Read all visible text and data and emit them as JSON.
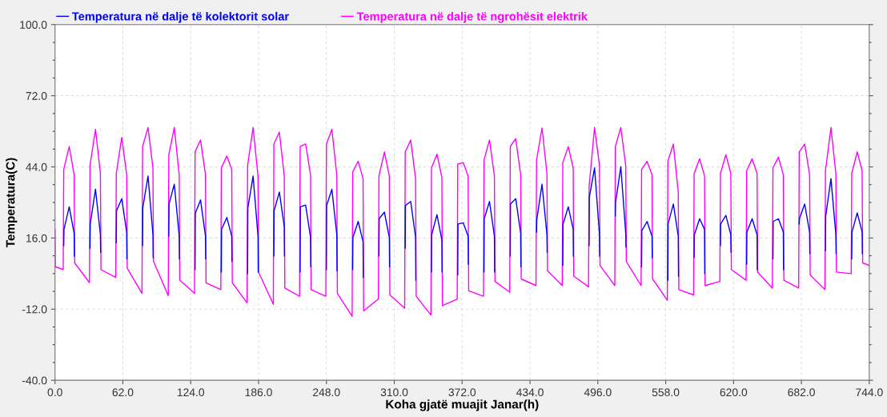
{
  "chart_data": {
    "type": "line",
    "xlabel": "Koha gjatë muajit Janar(h)",
    "ylabel": "Temperatura(C)",
    "xlim": [
      0,
      744
    ],
    "xticks": [
      {
        "value": 0,
        "label": "0.0"
      },
      {
        "value": 62,
        "label": "62.0"
      },
      {
        "value": 124,
        "label": "124.0"
      },
      {
        "value": 186,
        "label": "186.0"
      },
      {
        "value": 248,
        "label": "248.0"
      },
      {
        "value": 310,
        "label": "310.0"
      },
      {
        "value": 372,
        "label": "372.0"
      },
      {
        "value": 434,
        "label": "434.0"
      },
      {
        "value": 496,
        "label": "496.0"
      },
      {
        "value": 558,
        "label": "558.0"
      },
      {
        "value": 620,
        "label": "620.0"
      },
      {
        "value": 682,
        "label": "682.0"
      },
      {
        "value": 744,
        "label": "744.0"
      }
    ],
    "ylim": [
      -40,
      100
    ],
    "yticks": [
      {
        "value": -40,
        "label": "-40.0"
      },
      {
        "value": -12,
        "label": "-12.0"
      },
      {
        "value": 16,
        "label": "16.0"
      },
      {
        "value": 44,
        "label": "44.0"
      },
      {
        "value": 72,
        "label": "72.0"
      },
      {
        "value": 100,
        "label": "100.0"
      }
    ],
    "grid": true,
    "legend": "top",
    "line_style": "solid",
    "marker": "none",
    "series": [
      {
        "name": "Temperatura në dalje të ngrohësit elektrik",
        "color": "#ff00ff",
        "x": [
          0,
          0.3,
          7.5,
          8,
          13,
          17.5,
          18,
          31.5,
          32,
          37,
          41.5,
          42,
          55.5,
          56,
          61,
          65.5,
          66,
          79.5,
          80,
          85,
          89.5,
          90,
          103.5,
          104,
          109,
          113.5,
          114,
          127.5,
          128,
          133,
          137.5,
          138,
          151.5,
          152,
          157,
          161.5,
          162,
          175.5,
          176,
          181,
          185.5,
          186,
          199.5,
          200,
          205,
          209.5,
          210,
          223.5,
          224,
          229,
          233.5,
          234,
          247.5,
          248,
          253,
          257.5,
          258,
          271.5,
          272,
          277,
          281.5,
          282,
          295.5,
          296,
          301,
          305.5,
          306,
          319.5,
          320,
          325,
          329.5,
          330,
          343.5,
          344,
          349,
          353.5,
          354,
          367.5,
          368,
          373,
          377.5,
          378,
          391.5,
          392,
          397,
          401.5,
          402,
          415.5,
          416,
          421,
          425.5,
          426,
          439.5,
          440,
          445,
          449.5,
          450,
          463.5,
          464,
          469,
          473.5,
          474,
          487.5,
          488,
          493,
          497.5,
          498,
          511.5,
          512,
          517,
          521.5,
          522,
          535.5,
          536,
          541,
          545.5,
          546,
          559.5,
          560,
          565,
          569.5,
          570,
          583.5,
          584,
          589,
          593.5,
          594,
          607.5,
          608,
          613,
          617.5,
          618,
          631.5,
          632,
          637,
          641.5,
          642,
          655.5,
          656,
          661,
          665.5,
          666,
          679.5,
          680,
          685,
          689.5,
          690,
          703.5,
          704,
          709,
          713.5,
          714,
          727.5,
          728,
          733,
          737.5,
          738,
          744
        ],
        "values": [
          19.4,
          4.7,
          3.6,
          43,
          52,
          40.9,
          6.2,
          -1.6,
          44.6,
          58.8,
          41.4,
          3.6,
          0.5,
          41.4,
          55.6,
          40.9,
          4.1,
          -5.8,
          52,
          59.5,
          43.6,
          6.8,
          -6.7,
          48.8,
          59.5,
          40.9,
          -0.6,
          -5.8,
          50,
          54.6,
          40.9,
          -1.6,
          -4.3,
          43.6,
          48.3,
          43,
          -1.6,
          -9.5,
          44.6,
          59.5,
          40.4,
          2.6,
          -10.1,
          53,
          57.7,
          40.4,
          -3.7,
          -6.9,
          52,
          53,
          40.9,
          -4.3,
          -6.9,
          53,
          58.8,
          40.9,
          -5.8,
          -14.8,
          42,
          46.2,
          39.4,
          -12.7,
          -8,
          40.4,
          49.9,
          40.4,
          -6.4,
          -11.6,
          49.9,
          54.6,
          39.4,
          -6.9,
          -14.3,
          43.6,
          49,
          39.9,
          -10.6,
          -8,
          45.1,
          45.7,
          40.4,
          -4.8,
          -6.9,
          46.7,
          54.6,
          40.4,
          -1.1,
          -5.3,
          52,
          55.1,
          40.9,
          -0.1,
          -2.7,
          46.7,
          59.3,
          41.4,
          3.1,
          -2.7,
          45.7,
          52,
          43.6,
          1,
          -3.2,
          36.2,
          59.5,
          44.6,
          5.2,
          -2.7,
          52,
          59.5,
          44.6,
          6.8,
          -2.7,
          43,
          46.2,
          40.9,
          -0.1,
          -8.5,
          46.2,
          53,
          34.1,
          -4.3,
          -6.4,
          41.4,
          47.2,
          40.4,
          -2.7,
          -1.1,
          41.4,
          48.8,
          41.4,
          3.6,
          -0.6,
          42.5,
          47.2,
          41.4,
          2.6,
          -3.7,
          43.6,
          47.8,
          40.9,
          -0.6,
          -3.7,
          49.9,
          53,
          40.9,
          1.5,
          -4.3,
          42.5,
          59.5,
          41.4,
          2.6,
          2,
          41.4,
          49.9,
          42.5,
          6.2,
          5.2
        ]
      },
      {
        "name": "Temperatura në dalje të kolektorit solar",
        "color": "#0000ff",
        "x": [
          8,
          8.2,
          13,
          17.5,
          17.7,
          20,
          32,
          32.2,
          37,
          41.5,
          41.7,
          44,
          56,
          56.2,
          61,
          65.5,
          65.7,
          68,
          80,
          80.2,
          85,
          89.5,
          89.7,
          92,
          104,
          104.2,
          109,
          113.5,
          113.7,
          116,
          128,
          128.2,
          133,
          137.5,
          137.7,
          140,
          152,
          152.2,
          157,
          161.5,
          161.7,
          164,
          176,
          176.2,
          181,
          185.5,
          185.7,
          188,
          200,
          200.2,
          205,
          209.5,
          209.7,
          212,
          224,
          224.2,
          229,
          233.5,
          233.7,
          236,
          248,
          248.2,
          253,
          257.5,
          257.7,
          260,
          272,
          272.2,
          277,
          281.5,
          281.7,
          284,
          296,
          296.2,
          301,
          305.5,
          305.7,
          308,
          320,
          320.2,
          325,
          329.5,
          329.7,
          332,
          344,
          344.2,
          349,
          353.5,
          353.7,
          356,
          368,
          368.2,
          373,
          377.5,
          377.7,
          380,
          392,
          392.2,
          397,
          401.5,
          401.7,
          404,
          416,
          416.2,
          421,
          425.5,
          425.7,
          428,
          440,
          440.2,
          445,
          449.5,
          449.7,
          452,
          464,
          464.2,
          469,
          473.5,
          473.7,
          476,
          488,
          488.2,
          493,
          497.5,
          497.7,
          500,
          512,
          512.2,
          517,
          521.5,
          521.7,
          524,
          536,
          536.2,
          541,
          545.5,
          545.7,
          548,
          560,
          560.2,
          565,
          569.5,
          569.7,
          572,
          584,
          584.2,
          589,
          593.5,
          593.7,
          596,
          608,
          608.2,
          613,
          617.5,
          617.7,
          620,
          632,
          632.2,
          637,
          641.5,
          641.7,
          644,
          656,
          656.2,
          661,
          665.5,
          665.7,
          668,
          680,
          680.2,
          685,
          689.5,
          689.7,
          692,
          704,
          704.2,
          709,
          713.5,
          713.7,
          716,
          728,
          728.2,
          733,
          737.5,
          737.7
        ],
        "values": [
          13,
          19.4,
          28.3,
          17.8,
          8.9,
          null,
          12,
          21.5,
          35.2,
          17.3,
          10.4,
          null,
          14.1,
          26.7,
          31.5,
          18.3,
          7.8,
          null,
          13,
          27.8,
          40.4,
          17.3,
          8.3,
          null,
          16.7,
          29.4,
          37.2,
          16.7,
          7.8,
          null,
          3.6,
          25.7,
          31,
          16.7,
          7.8,
          null,
          2.6,
          19.4,
          24.1,
          16.7,
          6.8,
          null,
          2,
          27.8,
          40.4,
          16.7,
          2.6,
          null,
          8.9,
          26.7,
          34.1,
          20.4,
          8.9,
          null,
          2.6,
          28.3,
          29,
          16.2,
          4.7,
          null,
          3.6,
          28.8,
          35.2,
          17.3,
          3.1,
          null,
          3.6,
          16.2,
          22.5,
          14.6,
          0.5,
          null,
          8.9,
          23.6,
          26.2,
          16.2,
          4.7,
          null,
          12,
          28.8,
          30.4,
          16.2,
          -0.6,
          null,
          2.6,
          17.3,
          25.2,
          15.2,
          2.6,
          null,
          1.5,
          21.5,
          22,
          16.7,
          5.7,
          null,
          2.6,
          23.6,
          30.4,
          16.7,
          2.6,
          null,
          8.9,
          29.4,
          31.5,
          17.8,
          4.7,
          null,
          18.3,
          23.1,
          37.2,
          17.3,
          10.4,
          null,
          5.2,
          21.5,
          28.3,
          19.4,
          8.9,
          null,
          13,
          32,
          43.6,
          17.3,
          8.9,
          null,
          24.6,
          29.9,
          44.1,
          17.8,
          12.5,
          null,
          4.7,
          18.9,
          22.5,
          16.7,
          8.3,
          null,
          -0.6,
          21.5,
          29.4,
          16.7,
          1,
          null,
          8.3,
          17.3,
          23.6,
          19.4,
          2,
          null,
          13,
          21.5,
          24.9,
          17.3,
          10.4,
          null,
          5.7,
          18.3,
          23.6,
          17.3,
          3.6,
          null,
          7.8,
          22.5,
          23.6,
          18.3,
          3.6,
          null,
          21.5,
          23.6,
          29.4,
          18.3,
          9.9,
          null,
          11,
          24.6,
          39.4,
          17.3,
          9.9,
          null,
          7.8,
          18.3,
          25.9,
          18.3,
          9.9
        ]
      }
    ]
  }
}
